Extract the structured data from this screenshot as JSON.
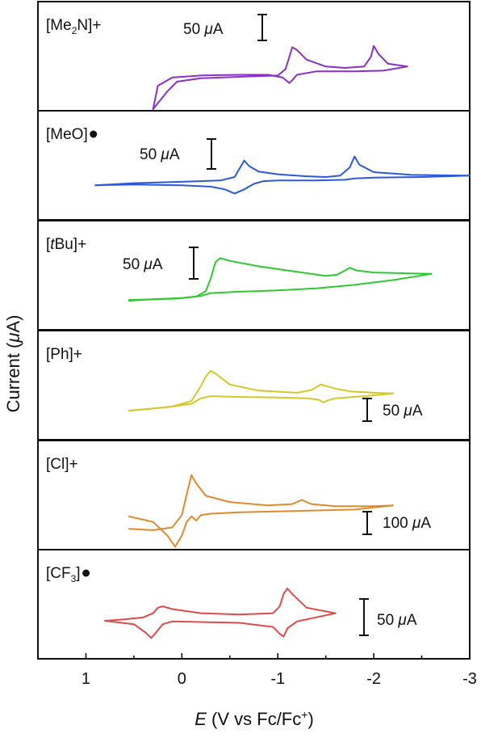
{
  "chart_data": {
    "type": "line",
    "stacked_panels": true,
    "xlabel_parts": {
      "italic": "E",
      "text": " (V vs Fc/Fc",
      "sup": "+",
      "close": ")"
    },
    "ylabel_parts": {
      "pre": "Current (",
      "italic": "μ",
      "post": "A)"
    },
    "x_axis": {
      "xlim": [
        1.5,
        -3.0
      ],
      "reversed": true,
      "ticks": [
        {
          "value": 1,
          "label": "1"
        },
        {
          "value": 0,
          "label": "0"
        },
        {
          "value": -1,
          "label": "-1"
        },
        {
          "value": -2,
          "label": "-2"
        },
        {
          "value": -3,
          "label": "-3"
        }
      ]
    },
    "panels": [
      {
        "label_parts": [
          "[Me",
          "2",
          "N]+"
        ],
        "marker": "",
        "color": "#8b2fc9",
        "scalebar": {
          "value": "50",
          "unit_italic": "μ",
          "unit": "A",
          "position": "top-left"
        },
        "peaks": [
          {
            "E": -1.15,
            "note": "anodic"
          },
          {
            "E": -2.0,
            "note": "anodic"
          },
          {
            "E": -1.12,
            "note": "cathodic"
          }
        ],
        "series": [
          {
            "name": "forward",
            "x": [
              0.3,
              0.15,
              0.05,
              -0.2,
              -0.6,
              -1.0,
              -1.08,
              -1.12,
              -1.15,
              -1.2,
              -1.3,
              -1.5,
              -1.7,
              -1.9,
              -1.97,
              -2.0,
              -2.05,
              -2.15,
              -2.35
            ],
            "y": [
              -58,
              -32,
              -18,
              -13,
              -11,
              -9,
              0,
              18,
              32,
              28,
              14,
              4,
              2,
              4,
              18,
              34,
              22,
              8,
              4
            ]
          },
          {
            "name": "reverse",
            "x": [
              -2.35,
              -2.1,
              -1.8,
              -1.4,
              -1.2,
              -1.15,
              -1.12,
              -1.05,
              -0.9,
              -0.6,
              -0.2,
              0.1,
              0.25,
              0.3
            ],
            "y": [
              4,
              -2,
              -3,
              -3,
              -8,
              -16,
              -20,
              -12,
              -8,
              -8,
              -9,
              -12,
              -24,
              -58
            ]
          }
        ]
      },
      {
        "label_parts": [
          "[MeO]"
        ],
        "marker": "dot",
        "color": "#2b59d9",
        "scalebar": {
          "value": "50",
          "unit_italic": "μ",
          "unit": "A",
          "position": "top-left"
        },
        "peaks": [
          {
            "E": -0.65,
            "note": "anodic"
          },
          {
            "E": -1.8,
            "note": "anodic"
          },
          {
            "E": -0.55,
            "note": "cathodic"
          }
        ],
        "series": [
          {
            "name": "forward",
            "x": [
              0.9,
              0.5,
              0.0,
              -0.4,
              -0.55,
              -0.6,
              -0.65,
              -0.7,
              -0.8,
              -1.0,
              -1.3,
              -1.5,
              -1.65,
              -1.75,
              -1.8,
              -1.85,
              -2.0,
              -2.4,
              -3.0
            ],
            "y": [
              -10,
              -7,
              -5,
              -3,
              2,
              14,
              26,
              18,
              10,
              6,
              3,
              2,
              4,
              16,
              32,
              20,
              9,
              5,
              4
            ]
          },
          {
            "name": "reverse",
            "x": [
              -3.0,
              -2.5,
              -2.0,
              -1.8,
              -1.7,
              -1.4,
              -1.0,
              -0.85,
              -0.75,
              -0.65,
              -0.55,
              -0.45,
              -0.3,
              0.0,
              0.5,
              0.9
            ],
            "y": [
              4,
              2,
              1,
              0,
              -2,
              -3,
              -3,
              -4,
              -8,
              -16,
              -22,
              -16,
              -12,
              -10,
              -9,
              -10
            ]
          }
        ]
      },
      {
        "label_parts": [
          "[",
          "t",
          "Bu]+"
        ],
        "marker": "",
        "color": "#2ec92e",
        "scalebar": {
          "value": "50",
          "unit_italic": "μ",
          "unit": "A",
          "position": "top-left"
        },
        "peaks": [
          {
            "E": -0.4,
            "note": "anodic"
          },
          {
            "E": -1.75,
            "note": "anodic"
          }
        ],
        "series": [
          {
            "name": "forward",
            "x": [
              0.55,
              0.3,
              0.05,
              -0.15,
              -0.25,
              -0.3,
              -0.35,
              -0.4,
              -0.5,
              -0.8,
              -1.2,
              -1.5,
              -1.62,
              -1.7,
              -1.75,
              -1.82,
              -2.0,
              -2.3,
              -2.6
            ],
            "y": [
              -17,
              -16,
              -15,
              -12,
              -4,
              14,
              38,
              44,
              40,
              32,
              24,
              18,
              20,
              26,
              30,
              26,
              23,
              22,
              21
            ]
          },
          {
            "name": "reverse",
            "x": [
              -2.6,
              -2.2,
              -1.8,
              -1.4,
              -1.0,
              -0.6,
              -0.3,
              -0.2,
              0.0,
              0.3,
              0.55
            ],
            "y": [
              21,
              12,
              5,
              0,
              -3,
              -5,
              -7,
              -11,
              -14,
              -16,
              -18
            ]
          }
        ]
      },
      {
        "label_parts": [
          "[Ph]+"
        ],
        "marker": "",
        "color": "#d4c829",
        "scalebar": {
          "value": "50",
          "unit_italic": "μ",
          "unit": "A",
          "position": "bottom-right"
        },
        "peaks": [
          {
            "E": -0.3,
            "note": "anodic"
          },
          {
            "E": -1.45,
            "note": "anodic"
          },
          {
            "E": -1.5,
            "note": "cathodic"
          }
        ],
        "series": [
          {
            "name": "forward",
            "x": [
              0.55,
              0.3,
              0.1,
              -0.1,
              -0.2,
              -0.25,
              -0.3,
              -0.35,
              -0.5,
              -0.8,
              -1.2,
              -1.35,
              -1.45,
              -1.5,
              -1.6,
              -1.75,
              -2.0,
              -2.2
            ],
            "y": [
              -18,
              -15,
              -12,
              -4,
              18,
              32,
              40,
              36,
              20,
              11,
              8,
              12,
              20,
              18,
              14,
              10,
              8,
              7
            ]
          },
          {
            "name": "reverse",
            "x": [
              -2.2,
              -1.9,
              -1.6,
              -1.52,
              -1.48,
              -1.42,
              -1.3,
              -1.0,
              -0.6,
              -0.3,
              -0.2,
              -0.1,
              0.1,
              0.3,
              0.55
            ],
            "y": [
              7,
              3,
              0,
              -3,
              -6,
              -2,
              0,
              1,
              2,
              3,
              0,
              -8,
              -12,
              -15,
              -18
            ]
          }
        ]
      },
      {
        "label_parts": [
          "[Cl]+"
        ],
        "marker": "",
        "color": "#e08a2e",
        "scalebar": {
          "value": "100",
          "unit_italic": "μ",
          "unit": "A",
          "position": "bottom-right"
        },
        "peaks": [
          {
            "E": -0.1,
            "note": "anodic"
          },
          {
            "E": -1.25,
            "note": "anodic"
          },
          {
            "E": 0.07,
            "note": "cathodic"
          }
        ],
        "series": [
          {
            "name": "forward",
            "x": [
              0.55,
              0.3,
              0.1,
              0.0,
              -0.05,
              -0.1,
              -0.15,
              -0.25,
              -0.5,
              -0.9,
              -1.15,
              -1.25,
              -1.35,
              -1.6,
              -2.0,
              -2.2
            ],
            "y": [
              -30,
              -32,
              -28,
              -10,
              20,
              48,
              36,
              18,
              9,
              4,
              6,
              12,
              6,
              3,
              3,
              4
            ]
          },
          {
            "name": "reverse",
            "x": [
              -2.2,
              -1.8,
              -1.2,
              -0.6,
              -0.3,
              -0.2,
              -0.15,
              -0.1,
              -0.05,
              0.0,
              0.07,
              0.15,
              0.3,
              0.55
            ],
            "y": [
              4,
              -2,
              -4,
              -6,
              -8,
              -10,
              -18,
              -12,
              -20,
              -40,
              -56,
              -40,
              -20,
              -12
            ]
          }
        ]
      },
      {
        "label_parts": [
          "[CF",
          "3",
          "]"
        ],
        "marker": "dot",
        "color": "#df4a4a",
        "scalebar": {
          "value": "50",
          "unit_italic": "μ",
          "unit": "A",
          "position": "right"
        },
        "peaks": [
          {
            "E": 0.2,
            "note": "anodic"
          },
          {
            "E": -1.1,
            "note": "anodic"
          },
          {
            "E": 0.3,
            "note": "cathodic"
          },
          {
            "E": -1.05,
            "note": "cathodic"
          }
        ],
        "series": [
          {
            "name": "forward",
            "x": [
              0.8,
              0.6,
              0.4,
              0.3,
              0.25,
              0.2,
              0.1,
              -0.2,
              -0.6,
              -0.95,
              -1.02,
              -1.06,
              -1.1,
              -1.15,
              -1.3,
              -1.6
            ],
            "y": [
              -5,
              -3,
              0,
              6,
              14,
              16,
              12,
              6,
              4,
              6,
              16,
              34,
              42,
              34,
              14,
              6
            ]
          },
          {
            "name": "reverse",
            "x": [
              -1.6,
              -1.4,
              -1.2,
              -1.1,
              -1.06,
              -1.02,
              -0.95,
              -0.6,
              0.1,
              0.2,
              0.28,
              0.32,
              0.38,
              0.5,
              0.8
            ],
            "y": [
              6,
              0,
              -6,
              -16,
              -28,
              -24,
              -14,
              -8,
              -6,
              -10,
              -24,
              -30,
              -22,
              -10,
              -5
            ]
          }
        ]
      }
    ]
  }
}
